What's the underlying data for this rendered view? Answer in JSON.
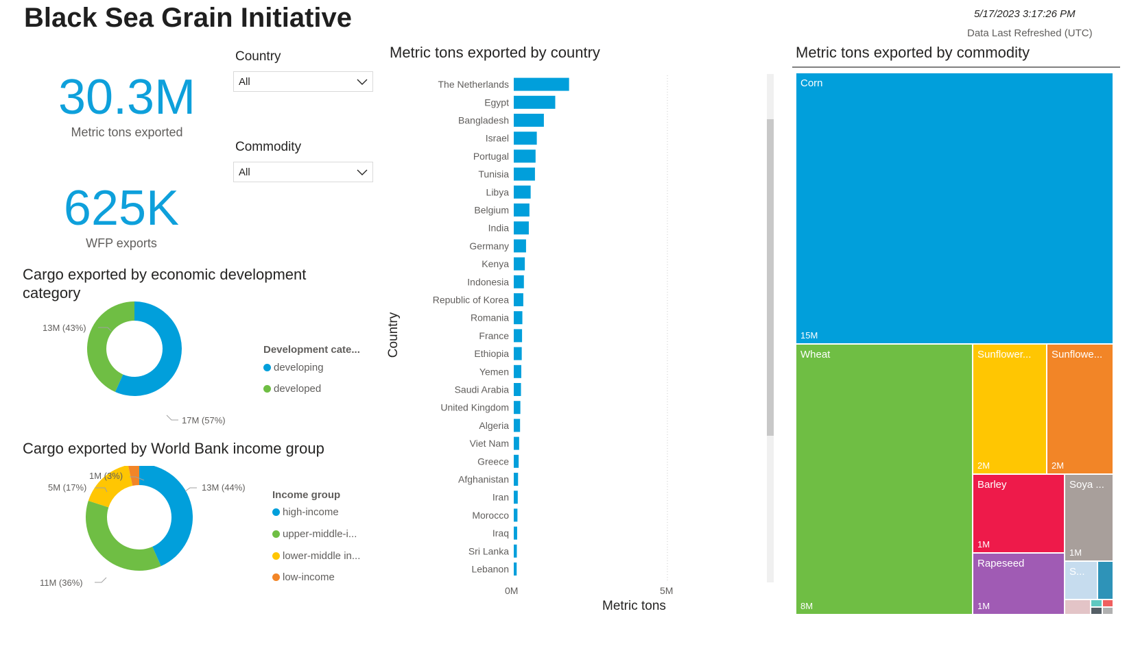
{
  "header": {
    "title": "Black Sea Grain Initiative",
    "refresh_date": "5/17/2023 3:17:26 PM",
    "refresh_label": "Data Last Refreshed (UTC)"
  },
  "kpis": {
    "metric_tons_value": "30.3M",
    "metric_tons_label": "Metric tons exported",
    "wfp_value": "625K",
    "wfp_label": "WFP exports"
  },
  "slicers": {
    "country_label": "Country",
    "country_value": "All",
    "commodity_label": "Commodity",
    "commodity_value": "All"
  },
  "colors": {
    "accent": "#0ea0db",
    "blue": "#019fdb",
    "green": "#6fbe44",
    "yellow": "#ffc602",
    "orange": "#f28527",
    "red": "#ee1a4a",
    "purple": "#a05bb4",
    "taupe": "#a89f9b",
    "light_blue": "#c6dcee",
    "teal_blue": "#2e93b8",
    "pink_gray": "#e3c4c7"
  },
  "dev_chart": {
    "title": "Cargo exported by economic development category",
    "legend_title": "Development cate...",
    "legend": [
      "developing",
      "developed"
    ],
    "label_developed": "13M (43%)",
    "label_developing": "17M (57%)"
  },
  "income_chart": {
    "title": "Cargo exported by World Bank income group",
    "legend_title": "Income group",
    "legend": [
      "high-income",
      "upper-middle-i...",
      "lower-middle in...",
      "low-income"
    ],
    "label_high": "13M (44%)",
    "label_upper": "11M (36%)",
    "label_lower": "5M (17%)",
    "label_low": "1M (3%)"
  },
  "bar_chart": {
    "title": "Metric tons exported by country",
    "ylabel": "Country",
    "xlabel": "Metric tons",
    "tick_0": "0M",
    "tick_5": "5M"
  },
  "treemap": {
    "title": "Metric tons exported by commodity",
    "cells": [
      {
        "label": "Corn",
        "value": "15M"
      },
      {
        "label": "Wheat",
        "value": "8M"
      },
      {
        "label": "Sunflower...",
        "value": "2M"
      },
      {
        "label": "Sunflowe...",
        "value": "2M"
      },
      {
        "label": "Barley",
        "value": "1M"
      },
      {
        "label": "Soya ...",
        "value": "1M"
      },
      {
        "label": "Rapeseed",
        "value": "1M"
      },
      {
        "label": "S...",
        "value": ""
      }
    ]
  },
  "chart_data": [
    {
      "type": "bar",
      "title": "Metric tons exported by country",
      "xlabel": "Metric tons",
      "ylabel": "Country",
      "xlim": [
        0,
        6000000
      ],
      "categories": [
        "The Netherlands",
        "Egypt",
        "Bangladesh",
        "Israel",
        "Portugal",
        "Tunisia",
        "Libya",
        "Belgium",
        "India",
        "Germany",
        "Kenya",
        "Indonesia",
        "Republic of Korea",
        "Romania",
        "France",
        "Ethiopia",
        "Yemen",
        "Saudi Arabia",
        "United Kingdom",
        "Algeria",
        "Viet Nam",
        "Greece",
        "Afghanistan",
        "Iran",
        "Morocco",
        "Iraq",
        "Sri Lanka",
        "Lebanon"
      ],
      "values": [
        1800000,
        1350000,
        980000,
        750000,
        710000,
        690000,
        550000,
        510000,
        490000,
        400000,
        360000,
        330000,
        310000,
        280000,
        270000,
        260000,
        245000,
        235000,
        215000,
        205000,
        175000,
        160000,
        140000,
        130000,
        120000,
        110000,
        100000,
        95000
      ],
      "xticks": [
        "0M",
        "5M"
      ]
    },
    {
      "type": "pie",
      "title": "Cargo exported by economic development category",
      "legend_title": "Development cate...",
      "categories": [
        "developing",
        "developed"
      ],
      "values": [
        17,
        13
      ],
      "labels": [
        "17M (57%)",
        "13M (43%)"
      ],
      "donut": true
    },
    {
      "type": "pie",
      "title": "Cargo exported by World Bank income group",
      "legend_title": "Income group",
      "categories": [
        "high-income",
        "upper-middle-i...",
        "lower-middle in...",
        "low-income"
      ],
      "values": [
        13,
        11,
        5,
        1
      ],
      "labels": [
        "13M (44%)",
        "11M (36%)",
        "5M (17%)",
        "1M (3%)"
      ],
      "donut": true
    },
    {
      "type": "treemap",
      "title": "Metric tons exported by commodity",
      "categories": [
        "Corn",
        "Wheat",
        "Sunflower...",
        "Sunflowe...",
        "Barley",
        "Soya ...",
        "Rapeseed",
        "S..."
      ],
      "values": [
        15,
        8,
        2,
        2,
        1,
        1,
        1,
        0.3
      ]
    }
  ]
}
